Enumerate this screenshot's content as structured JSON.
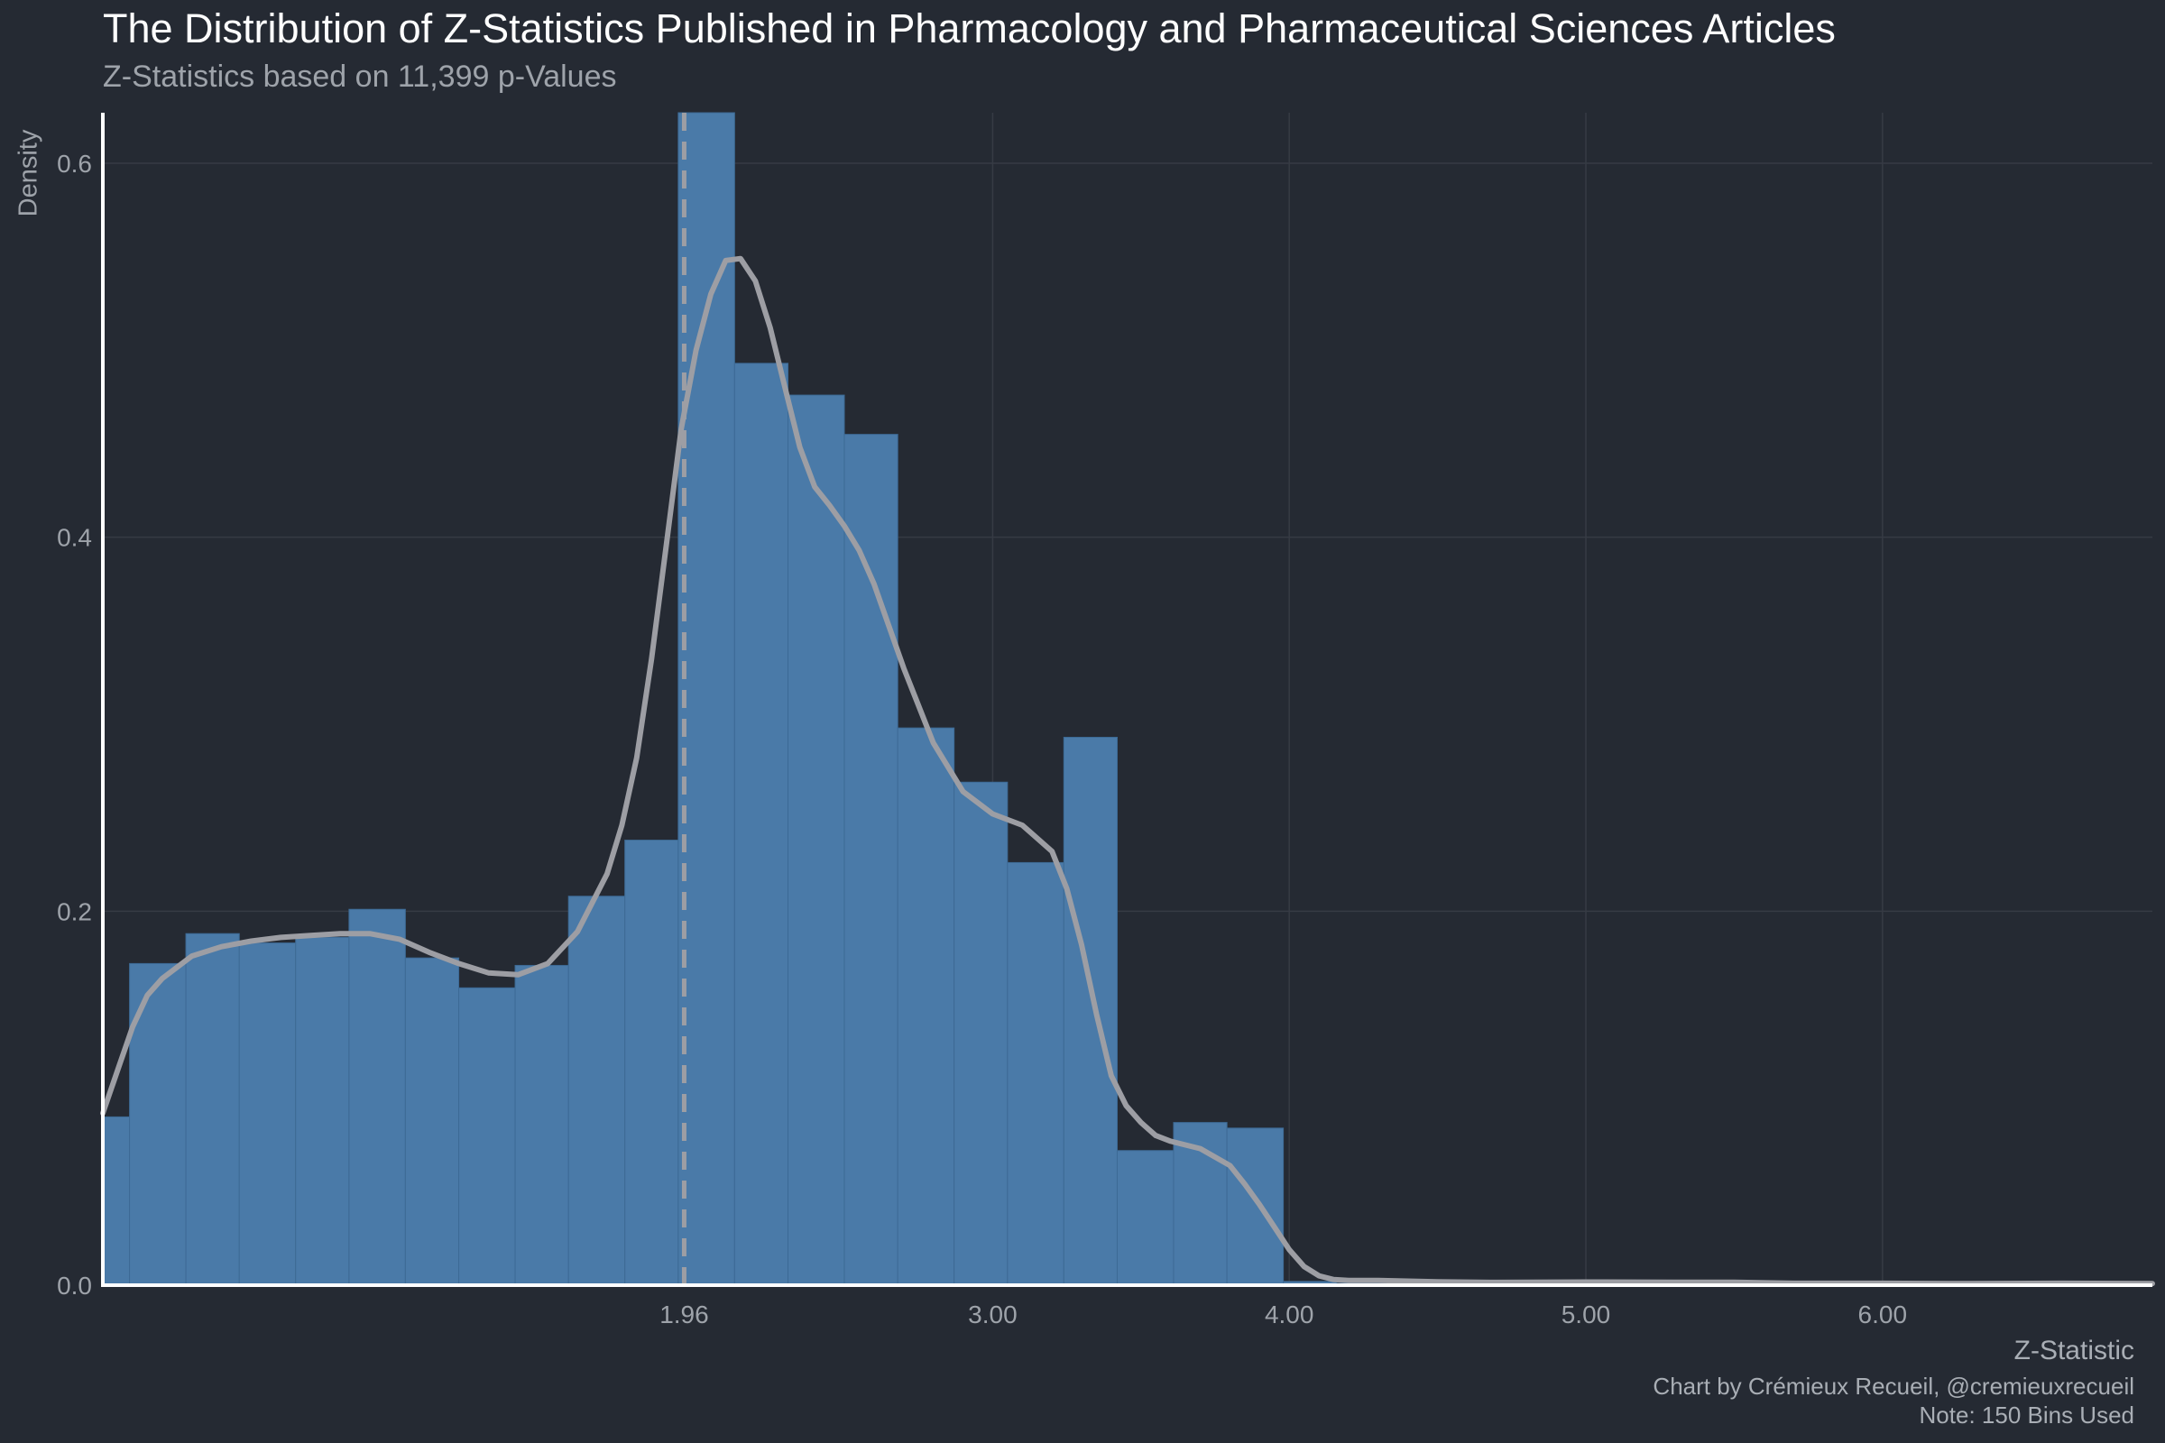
{
  "chart_data": {
    "type": "histogram",
    "title": "The Distribution of Z-Statistics Published in Pharmacology and Pharmaceutical Sciences Articles",
    "subtitle": "Z-Statistics based on 11,399 p-Values",
    "xlabel": "Z-Statistic",
    "ylabel": "Density",
    "caption_lines": [
      "Chart by Crémieux Recueil, @cremieuxrecueil",
      "Note: 150 Bins Used"
    ],
    "xlim": [
      0.0,
      6.91
    ],
    "ylim": [
      0.0,
      0.627
    ],
    "x_ticks": [
      {
        "value": 1.96,
        "label": "1.96"
      },
      {
        "value": 3.0,
        "label": "3.00"
      },
      {
        "value": 4.0,
        "label": "4.00"
      },
      {
        "value": 5.0,
        "label": "5.00"
      },
      {
        "value": 6.0,
        "label": "6.00"
      }
    ],
    "y_ticks": [
      {
        "value": 0.0,
        "label": "0.0"
      },
      {
        "value": 0.2,
        "label": "0.2"
      },
      {
        "value": 0.4,
        "label": "0.4"
      },
      {
        "value": 0.6,
        "label": "0.6"
      }
    ],
    "reference_line": {
      "x": 1.96,
      "style": "dashed"
    },
    "bins": [
      {
        "x0": 0.0,
        "x1": 0.09,
        "density": 0.09
      },
      {
        "x0": 0.09,
        "x1": 0.28,
        "density": 0.172
      },
      {
        "x0": 0.28,
        "x1": 0.46,
        "density": 0.188
      },
      {
        "x0": 0.46,
        "x1": 0.65,
        "density": 0.183
      },
      {
        "x0": 0.65,
        "x1": 0.83,
        "density": 0.186
      },
      {
        "x0": 0.83,
        "x1": 1.02,
        "density": 0.201
      },
      {
        "x0": 1.02,
        "x1": 1.2,
        "density": 0.175
      },
      {
        "x0": 1.2,
        "x1": 1.39,
        "density": 0.159
      },
      {
        "x0": 1.39,
        "x1": 1.57,
        "density": 0.171
      },
      {
        "x0": 1.57,
        "x1": 1.76,
        "density": 0.208
      },
      {
        "x0": 1.76,
        "x1": 1.94,
        "density": 0.238
      },
      {
        "x0": 1.94,
        "x1": 2.13,
        "density": 0.627
      },
      {
        "x0": 2.13,
        "x1": 2.31,
        "density": 0.493
      },
      {
        "x0": 2.31,
        "x1": 2.5,
        "density": 0.476
      },
      {
        "x0": 2.5,
        "x1": 2.68,
        "density": 0.455
      },
      {
        "x0": 2.68,
        "x1": 2.87,
        "density": 0.298
      },
      {
        "x0": 2.87,
        "x1": 3.05,
        "density": 0.269
      },
      {
        "x0": 3.05,
        "x1": 3.24,
        "density": 0.226
      },
      {
        "x0": 3.24,
        "x1": 3.42,
        "density": 0.293
      },
      {
        "x0": 3.42,
        "x1": 3.61,
        "density": 0.072
      },
      {
        "x0": 3.61,
        "x1": 3.79,
        "density": 0.087
      },
      {
        "x0": 3.79,
        "x1": 3.98,
        "density": 0.084
      },
      {
        "x0": 3.98,
        "x1": 4.16,
        "density": 0.002
      },
      {
        "x0": 4.16,
        "x1": 4.35,
        "density": 0.001
      }
    ],
    "density_curve": {
      "x": [
        0.0,
        0.05,
        0.1,
        0.15,
        0.2,
        0.3,
        0.4,
        0.5,
        0.6,
        0.7,
        0.8,
        0.9,
        1.0,
        1.1,
        1.2,
        1.3,
        1.4,
        1.5,
        1.6,
        1.7,
        1.75,
        1.8,
        1.85,
        1.9,
        1.95,
        2.0,
        2.05,
        2.1,
        2.15,
        2.2,
        2.25,
        2.3,
        2.35,
        2.4,
        2.45,
        2.5,
        2.55,
        2.6,
        2.7,
        2.8,
        2.9,
        3.0,
        3.1,
        3.2,
        3.25,
        3.3,
        3.35,
        3.4,
        3.45,
        3.5,
        3.55,
        3.6,
        3.65,
        3.7,
        3.8,
        3.85,
        3.9,
        3.95,
        4.0,
        4.05,
        4.1,
        4.15,
        4.2,
        4.3,
        4.5,
        4.7,
        5.0,
        5.3,
        5.5,
        5.7,
        6.0,
        6.3,
        6.6,
        6.91
      ],
      "y": [
        0.092,
        0.115,
        0.138,
        0.155,
        0.164,
        0.176,
        0.181,
        0.184,
        0.186,
        0.187,
        0.188,
        0.188,
        0.185,
        0.178,
        0.172,
        0.167,
        0.166,
        0.172,
        0.189,
        0.22,
        0.246,
        0.282,
        0.335,
        0.396,
        0.458,
        0.5,
        0.53,
        0.548,
        0.549,
        0.537,
        0.512,
        0.48,
        0.448,
        0.427,
        0.417,
        0.406,
        0.393,
        0.375,
        0.33,
        0.29,
        0.264,
        0.252,
        0.246,
        0.232,
        0.212,
        0.182,
        0.145,
        0.112,
        0.096,
        0.087,
        0.08,
        0.077,
        0.075,
        0.073,
        0.064,
        0.054,
        0.043,
        0.031,
        0.019,
        0.01,
        0.005,
        0.003,
        0.0025,
        0.0025,
        0.0018,
        0.0015,
        0.0017,
        0.0016,
        0.0016,
        0.001,
        0.001,
        0.0008,
        0.001,
        0.0008
      ]
    },
    "grid": true,
    "colors": {
      "background": "#252a33",
      "bar": "#4a7aa8",
      "curve": "#9d9ea4",
      "reference_line": "#9d9ea4",
      "grid": "#363b44",
      "axis": "#ffffff",
      "tick_label": "#9ea3aa"
    }
  }
}
